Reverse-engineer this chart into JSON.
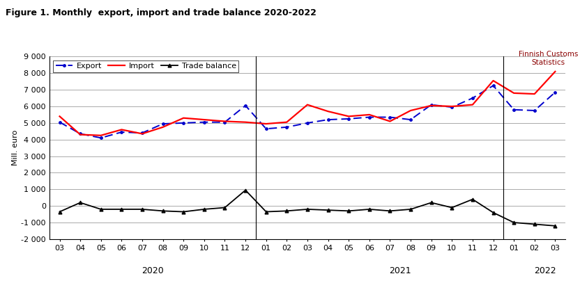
{
  "title": "Figure 1. Monthly  export, import and trade balance 2020-2022",
  "watermark_line1": "Finnish Customs",
  "watermark_line2": "Statistics",
  "ylabel": "Mill. euro",
  "x_labels": [
    "03",
    "04",
    "05",
    "06",
    "07",
    "08",
    "09",
    "10",
    "11",
    "12",
    "01",
    "02",
    "03",
    "04",
    "05",
    "06",
    "07",
    "08",
    "09",
    "10",
    "11",
    "12",
    "01",
    "02",
    "03"
  ],
  "year_labels": [
    [
      "2020",
      4.5
    ],
    [
      "2021",
      16.5
    ],
    [
      "2022",
      23.5
    ]
  ],
  "year_dividers": [
    9.5,
    21.5
  ],
  "export": [
    5050,
    4350,
    4100,
    4450,
    4400,
    4950,
    5000,
    5050,
    5050,
    6050,
    4650,
    4750,
    5000,
    5200,
    5250,
    5350,
    5350,
    5200,
    6100,
    5950,
    6500,
    7250,
    5800,
    5750,
    6850
  ],
  "import": [
    5400,
    4300,
    4250,
    4600,
    4350,
    4750,
    5300,
    5200,
    5100,
    5050,
    4950,
    5050,
    6100,
    5700,
    5400,
    5500,
    5100,
    5750,
    6050,
    6000,
    6100,
    7550,
    6800,
    6750,
    8100
  ],
  "trade_balance": [
    -350,
    200,
    -200,
    -200,
    -200,
    -300,
    -350,
    -200,
    -100,
    950,
    -350,
    -300,
    -200,
    -250,
    -300,
    -200,
    -300,
    -200,
    200,
    -100,
    400,
    -400,
    -1000,
    -1100,
    -1200
  ],
  "export_color": "#0000CC",
  "import_color": "#FF0000",
  "trade_balance_color": "#000000",
  "ylim": [
    -2000,
    9000
  ],
  "yticks": [
    -2000,
    -1000,
    0,
    1000,
    2000,
    3000,
    4000,
    5000,
    6000,
    7000,
    8000,
    9000
  ],
  "background_color": "#FFFFFF",
  "grid_color": "#888888",
  "title_fontsize": 9,
  "axis_fontsize": 8,
  "year_label_fontsize": 9
}
